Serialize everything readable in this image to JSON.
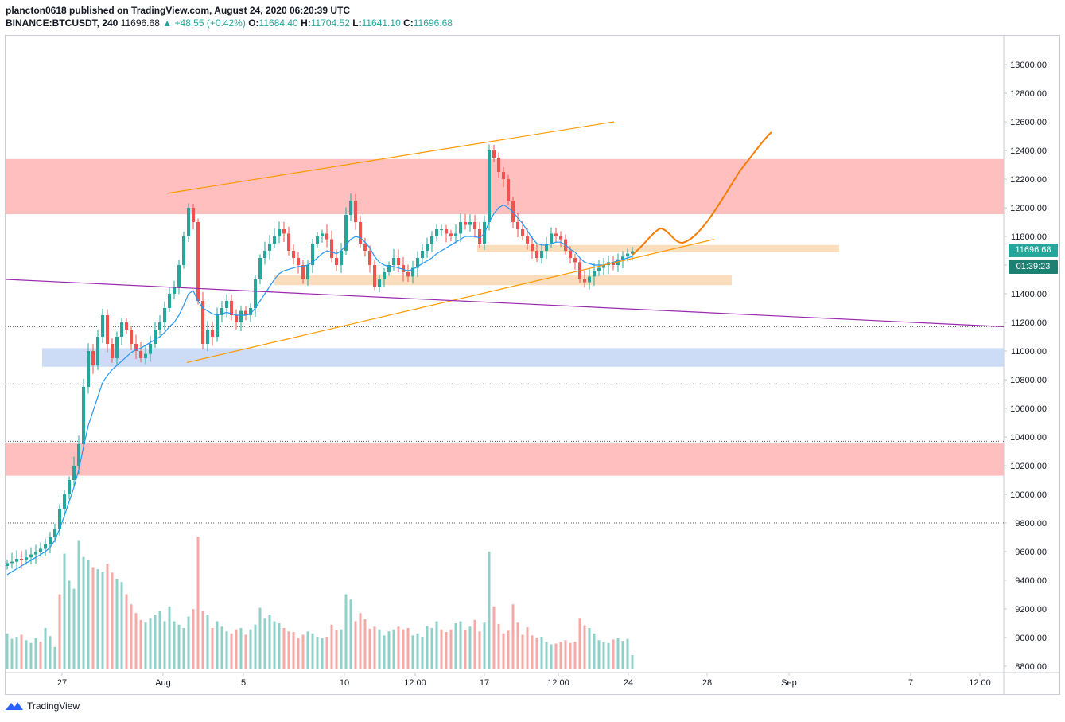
{
  "header": {
    "publisher_line": "plancton0618 published on TradingView.com, August 24, 2020 06:20:39 UTC",
    "symbol": "BINANCE:BTCUSDT, 240",
    "last": "11696.68",
    "change_arrow": "▲",
    "change": "+48.55 (+0.42%)",
    "o_label": "O:",
    "o_value": "11684.40",
    "h_label": "H:",
    "h_value": "11704.52",
    "l_label": "L:",
    "l_value": "11641.10",
    "c_label": "C:",
    "c_value": "11696.68"
  },
  "price_tag": {
    "price": "11696.68",
    "countdown": "01:39:23"
  },
  "footer": {
    "brand": "TradingView",
    "logo_icon": "tradingview-logo-icon"
  },
  "colors": {
    "up": "#26a69a",
    "down": "#ef5350",
    "ma": "#2196f3",
    "resistance_zone": "#ffb8b8",
    "support_zone": "#c6d8f5",
    "local_zone": "#fad9b5",
    "trendline": "#ff9800",
    "purple_line": "#9c27b0",
    "projection": "#f57c00"
  },
  "chart_data": {
    "type": "candlestick",
    "symbol": "BINANCE:BTCUSDT",
    "timeframe": "240",
    "x_tick_labels": [
      "27",
      "Aug",
      "5",
      "10",
      "12:00",
      "17",
      "12:00",
      "24",
      "28",
      "Sep",
      "7",
      "12:00"
    ],
    "y_tick_labels": [
      "13000.00",
      "12800.00",
      "12600.00",
      "12400.00",
      "12200.00",
      "12000.00",
      "11800.00",
      "11600.00",
      "11400.00",
      "11200.00",
      "11000.00",
      "10800.00",
      "10600.00",
      "10400.00",
      "10200.00",
      "10000.00",
      "9800.00",
      "9600.00",
      "9400.00",
      "9200.00",
      "9000.00",
      "8800.00"
    ],
    "ylim": [
      8780,
      13140
    ],
    "zones": [
      {
        "name": "resistance",
        "from": 11955,
        "to": 12340
      },
      {
        "name": "resistance-low",
        "from": 10130,
        "to": 10355
      },
      {
        "name": "support",
        "from": 10890,
        "to": 11020
      },
      {
        "name": "local-a",
        "from": 11690,
        "to": 11740
      },
      {
        "name": "local-b",
        "from": 11460,
        "to": 11530
      }
    ],
    "horizontal_levels": [
      11170,
      10770,
      10370,
      9800
    ],
    "closes": [
      9520,
      9530,
      9550,
      9545,
      9560,
      9580,
      9600,
      9620,
      9650,
      9700,
      9760,
      9900,
      10000,
      10100,
      10200,
      10350,
      10750,
      11000,
      10900,
      11100,
      11250,
      11050,
      10950,
      11100,
      11200,
      11150,
      11050,
      11000,
      10950,
      10980,
      11050,
      11150,
      11200,
      11300,
      11400,
      11450,
      11600,
      11800,
      12000,
      11900,
      11350,
      11050,
      11150,
      11100,
      11250,
      11300,
      11350,
      11250,
      11200,
      11280,
      11250,
      11300,
      11500,
      11650,
      11700,
      11750,
      11800,
      11850,
      11820,
      11700,
      11650,
      11600,
      11500,
      11600,
      11750,
      11800,
      11820,
      11780,
      11650,
      11600,
      11700,
      11950,
      12050,
      11900,
      11750,
      11700,
      11600,
      11450,
      11500,
      11550,
      11600,
      11650,
      11600,
      11550,
      11520,
      11580,
      11650,
      11700,
      11750,
      11800,
      11850,
      11850,
      11820,
      11800,
      11820,
      11900,
      11880,
      11900,
      11850,
      11750,
      11900,
      12400,
      12350,
      12250,
      12200,
      12050,
      11900,
      11850,
      11800,
      11750,
      11700,
      11650,
      11700,
      11750,
      11820,
      11800,
      11780,
      11700,
      11650,
      11620,
      11500,
      11480,
      11520,
      11560,
      11580,
      11600,
      11620,
      11600,
      11640,
      11660,
      11680,
      11697
    ],
    "ma_values": [
      9440,
      9460,
      9480,
      9500,
      9520,
      9540,
      9560,
      9580,
      9600,
      9630,
      9680,
      9760,
      9850,
      9950,
      10050,
      10170,
      10330,
      10480,
      10580,
      10680,
      10780,
      10830,
      10870,
      10900,
      10930,
      10960,
      10990,
      11010,
      11020,
      11040,
      11060,
      11080,
      11100,
      11130,
      11170,
      11200,
      11250,
      11320,
      11400,
      11420,
      11350,
      11300,
      11280,
      11260,
      11250,
      11260,
      11270,
      11260,
      11250,
      11250,
      11250,
      11260,
      11300,
      11350,
      11400,
      11450,
      11500,
      11540,
      11560,
      11570,
      11580,
      11590,
      11590,
      11600,
      11620,
      11650,
      11680,
      11700,
      11690,
      11680,
      11700,
      11740,
      11780,
      11800,
      11790,
      11760,
      11720,
      11660,
      11620,
      11600,
      11590,
      11590,
      11580,
      11570,
      11560,
      11570,
      11590,
      11610,
      11630,
      11650,
      11680,
      11700,
      11720,
      11740,
      11760,
      11780,
      11800,
      11800,
      11800,
      11790,
      11820,
      11900,
      11960,
      12000,
      12020,
      12000,
      11970,
      11930,
      11890,
      11840,
      11790,
      11750,
      11740,
      11740,
      11750,
      11760,
      11760,
      11740,
      11710,
      11690,
      11650,
      11620,
      11610,
      11600,
      11600,
      11600,
      11610,
      11620,
      11630,
      11640,
      11650,
      11660
    ],
    "volume": {
      "ymax_px": 220,
      "heights": [
        52,
        44,
        47,
        50,
        42,
        38,
        45,
        40,
        60,
        48,
        32,
        110,
        170,
        130,
        118,
        190,
        165,
        160,
        150,
        147,
        143,
        155,
        142,
        133,
        128,
        110,
        95,
        82,
        72,
        68,
        75,
        80,
        85,
        70,
        92,
        70,
        65,
        60,
        77,
        88,
        195,
        85,
        80,
        60,
        70,
        62,
        55,
        52,
        58,
        60,
        50,
        58,
        65,
        90,
        75,
        80,
        70,
        67,
        60,
        55,
        54,
        45,
        50,
        55,
        52,
        47,
        45,
        47,
        65,
        57,
        58,
        110,
        102,
        70,
        82,
        73,
        59,
        62,
        58,
        49,
        55,
        58,
        62,
        58,
        60,
        49,
        52,
        47,
        63,
        60,
        70,
        58,
        54,
        58,
        67,
        70,
        57,
        62,
        72,
        55,
        68,
        173,
        92,
        66,
        52,
        56,
        95,
        68,
        50,
        61,
        49,
        46,
        47,
        40,
        36,
        37,
        40,
        42,
        38,
        40,
        75,
        64,
        60,
        52,
        42,
        40,
        38,
        43,
        45,
        41,
        44,
        20
      ],
      "up_flags": [
        1,
        1,
        1,
        0,
        1,
        1,
        1,
        0,
        1,
        1,
        1,
        0,
        1,
        1,
        1,
        1,
        1,
        1,
        0,
        1,
        1,
        0,
        0,
        1,
        1,
        0,
        0,
        0,
        0,
        1,
        1,
        1,
        1,
        1,
        1,
        1,
        1,
        1,
        1,
        0,
        0,
        0,
        1,
        0,
        1,
        1,
        1,
        0,
        0,
        1,
        0,
        1,
        1,
        1,
        1,
        1,
        1,
        1,
        0,
        0,
        0,
        0,
        0,
        1,
        1,
        1,
        1,
        0,
        0,
        0,
        1,
        1,
        1,
        0,
        0,
        0,
        0,
        0,
        1,
        1,
        1,
        1,
        0,
        0,
        0,
        1,
        1,
        1,
        1,
        1,
        1,
        0,
        0,
        0,
        1,
        1,
        0,
        1,
        0,
        0,
        1,
        1,
        0,
        0,
        0,
        0,
        0,
        0,
        0,
        0,
        0,
        0,
        1,
        1,
        1,
        0,
        0,
        0,
        0,
        0,
        0,
        0,
        1,
        1,
        1,
        1,
        1,
        0,
        1,
        1,
        1,
        1
      ]
    },
    "trendlines": [
      {
        "name": "channel-top",
        "from": [
          210,
          12100
        ],
        "to": [
          772,
          12600
        ]
      },
      {
        "name": "channel-bottom",
        "from": [
          235,
          10920
        ],
        "to": [
          898,
          11780
        ]
      },
      {
        "name": "long-descending",
        "from": [
          8,
          11500
        ],
        "to": [
          1262,
          11170
        ]
      }
    ]
  }
}
